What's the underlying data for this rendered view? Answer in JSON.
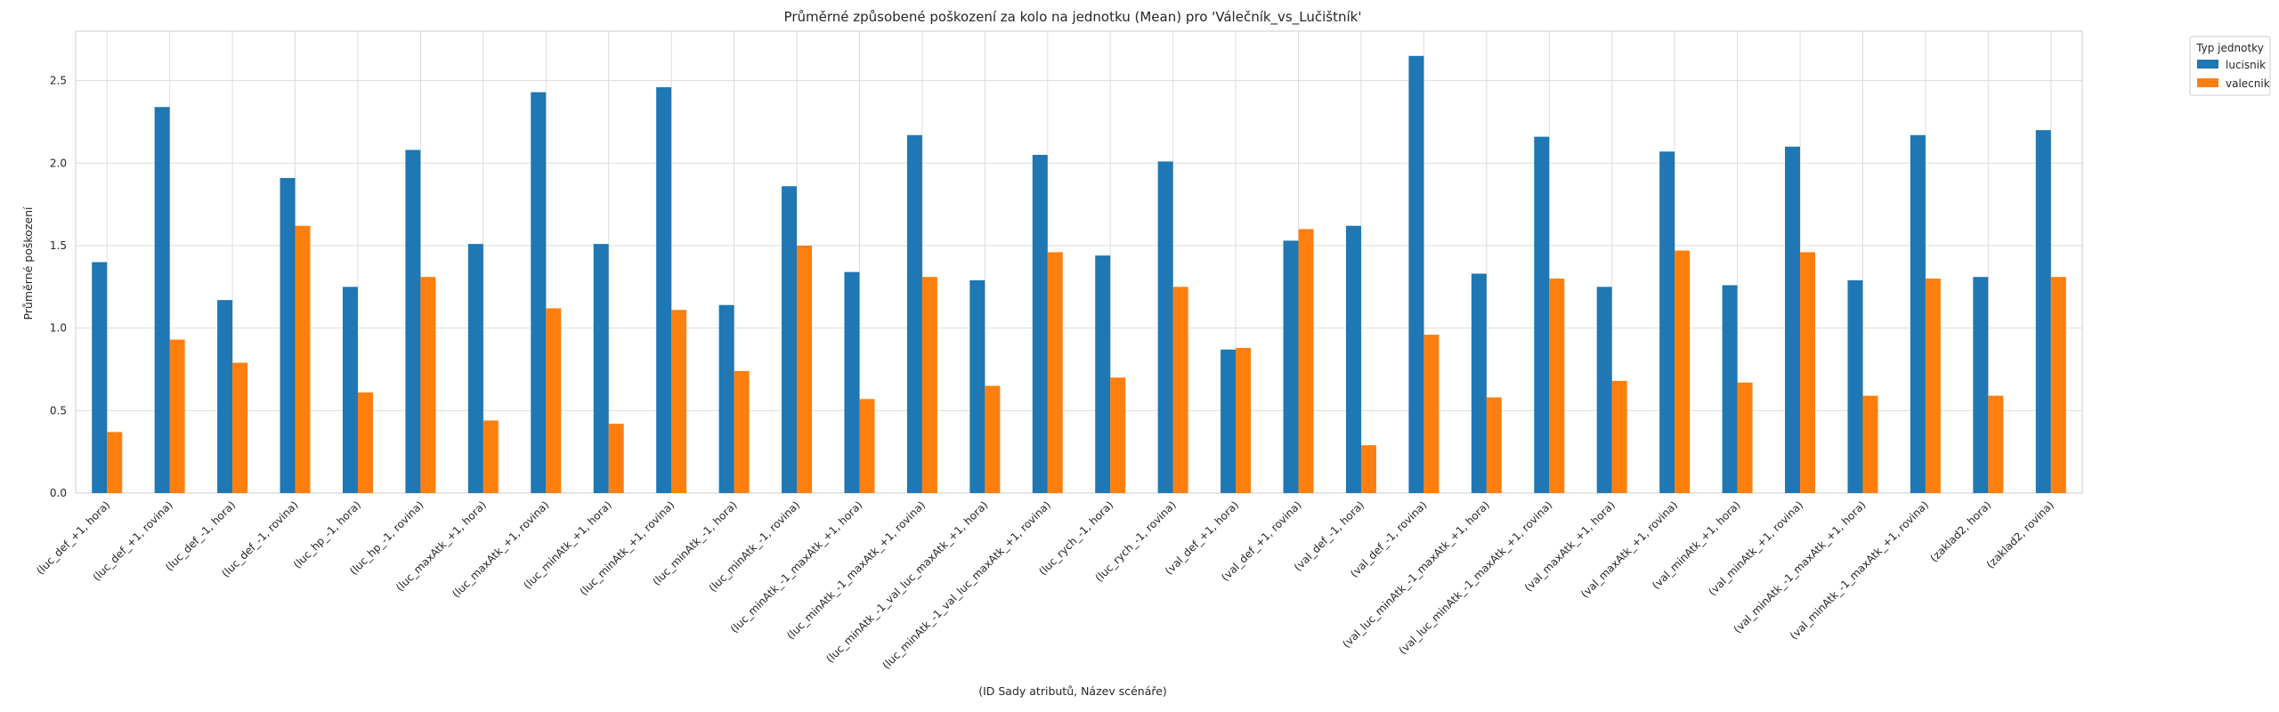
{
  "chart_data": {
    "type": "bar",
    "title": "Průměrné způsobené poškození za kolo na jednotku (Mean) pro 'Válečník_vs_Lučištník'",
    "xlabel": "(ID Sady atributů, Název scénáře)",
    "ylabel": "Průměrné poškození",
    "ylim": [
      0,
      2.8
    ],
    "yticks": [
      0.0,
      0.5,
      1.0,
      1.5,
      2.0,
      2.5
    ],
    "ytick_labels": [
      "0.0",
      "0.5",
      "1.0",
      "1.5",
      "2.0",
      "2.5"
    ],
    "grid": true,
    "legend": {
      "title": "Typ jednotky",
      "placement": "outside-top-right"
    },
    "categories": [
      "(luc_def_+1, hora)",
      "(luc_def_+1, rovina)",
      "(luc_def_-1, hora)",
      "(luc_def_-1, rovina)",
      "(luc_hp_-1, hora)",
      "(luc_hp_-1, rovina)",
      "(luc_maxAtk_+1, hora)",
      "(luc_maxAtk_+1, rovina)",
      "(luc_minAtk_+1, hora)",
      "(luc_minAtk_+1, rovina)",
      "(luc_minAtk_-1, hora)",
      "(luc_minAtk_-1, rovina)",
      "(luc_minAtk_-1_maxAtk_+1, hora)",
      "(luc_minAtk_-1_maxAtk_+1, rovina)",
      "(luc_minAtk_-1_val_luc_maxAtk_+1, hora)",
      "(luc_minAtk_-1_val_luc_maxAtk_+1, rovina)",
      "(luc_rych_-1, hora)",
      "(luc_rych_-1, rovina)",
      "(val_def_+1, hora)",
      "(val_def_+1, rovina)",
      "(val_def_-1, hora)",
      "(val_def_-1, rovina)",
      "(val_luc_minAtk_-1_maxAtk_+1, hora)",
      "(val_luc_minAtk_-1_maxAtk_+1, rovina)",
      "(val_maxAtk_+1, hora)",
      "(val_maxAtk_+1, rovina)",
      "(val_minAtk_+1, hora)",
      "(val_minAtk_+1, rovina)",
      "(val_minAtk_-1_maxAtk_+1, hora)",
      "(val_minAtk_-1_maxAtk_+1, rovina)",
      "(zaklad2, hora)",
      "(zaklad2, rovina)"
    ],
    "series": [
      {
        "name": "lucisnik",
        "color": "#1f77b4",
        "values": [
          1.4,
          2.34,
          1.17,
          1.91,
          1.25,
          2.08,
          1.51,
          2.43,
          1.51,
          2.46,
          1.14,
          1.86,
          1.34,
          2.17,
          1.29,
          2.05,
          1.44,
          2.01,
          0.87,
          1.53,
          1.62,
          2.65,
          1.33,
          2.16,
          1.25,
          2.07,
          1.26,
          2.1,
          1.29,
          2.17,
          1.31,
          2.2
        ]
      },
      {
        "name": "valecnik",
        "color": "#ff7f0e",
        "values": [
          0.37,
          0.93,
          0.79,
          1.62,
          0.61,
          1.31,
          0.44,
          1.12,
          0.42,
          1.11,
          0.74,
          1.5,
          0.57,
          1.31,
          0.65,
          1.46,
          0.7,
          1.25,
          0.88,
          1.6,
          0.29,
          0.96,
          0.58,
          1.3,
          0.68,
          1.47,
          0.67,
          1.46,
          0.59,
          1.3,
          0.59,
          1.31
        ]
      }
    ]
  }
}
